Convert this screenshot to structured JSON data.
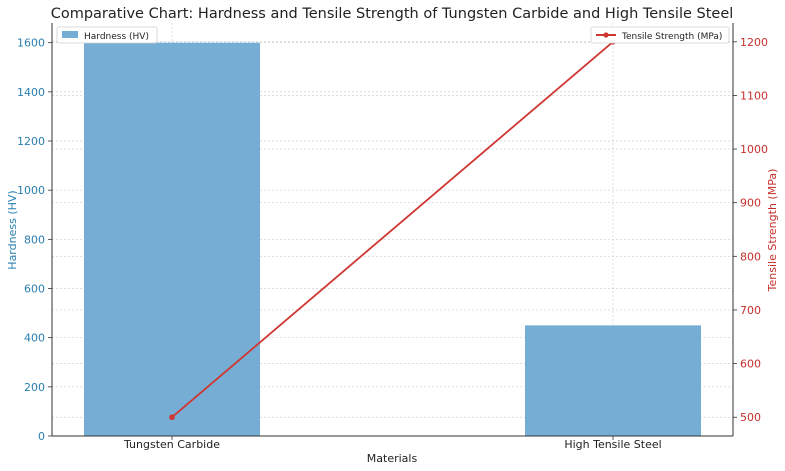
{
  "chart_data": {
    "type": "bar+line",
    "title": "Comparative Chart: Hardness and Tensile Strength of Tungsten Carbide and High Tensile Steel",
    "xlabel": "Materials",
    "categories": [
      "Tungsten Carbide",
      "High Tensile Steel"
    ],
    "bar_series": {
      "name": "Hardness (HV)",
      "values": [
        1600,
        450
      ],
      "color": "#76add4"
    },
    "line_series": {
      "name": "Tensile Strength (MPa)",
      "values": [
        500,
        1200
      ],
      "color": "#cf3632"
    },
    "left_axis": {
      "label": "Hardness (HV)",
      "ylim": [
        0,
        1680
      ],
      "ticks": [
        0,
        200,
        400,
        600,
        800,
        1000,
        1200,
        1400,
        1600
      ],
      "color": "#2a7fb0"
    },
    "right_axis": {
      "label": "Tensile Strength (MPa)",
      "ylim": [
        465,
        1235
      ],
      "ticks": [
        500,
        600,
        700,
        800,
        900,
        1000,
        1100,
        1200
      ],
      "color": "#c6302c"
    },
    "grid": true,
    "legend_bar_placement": "top-left",
    "legend_line_placement": "top-right"
  }
}
